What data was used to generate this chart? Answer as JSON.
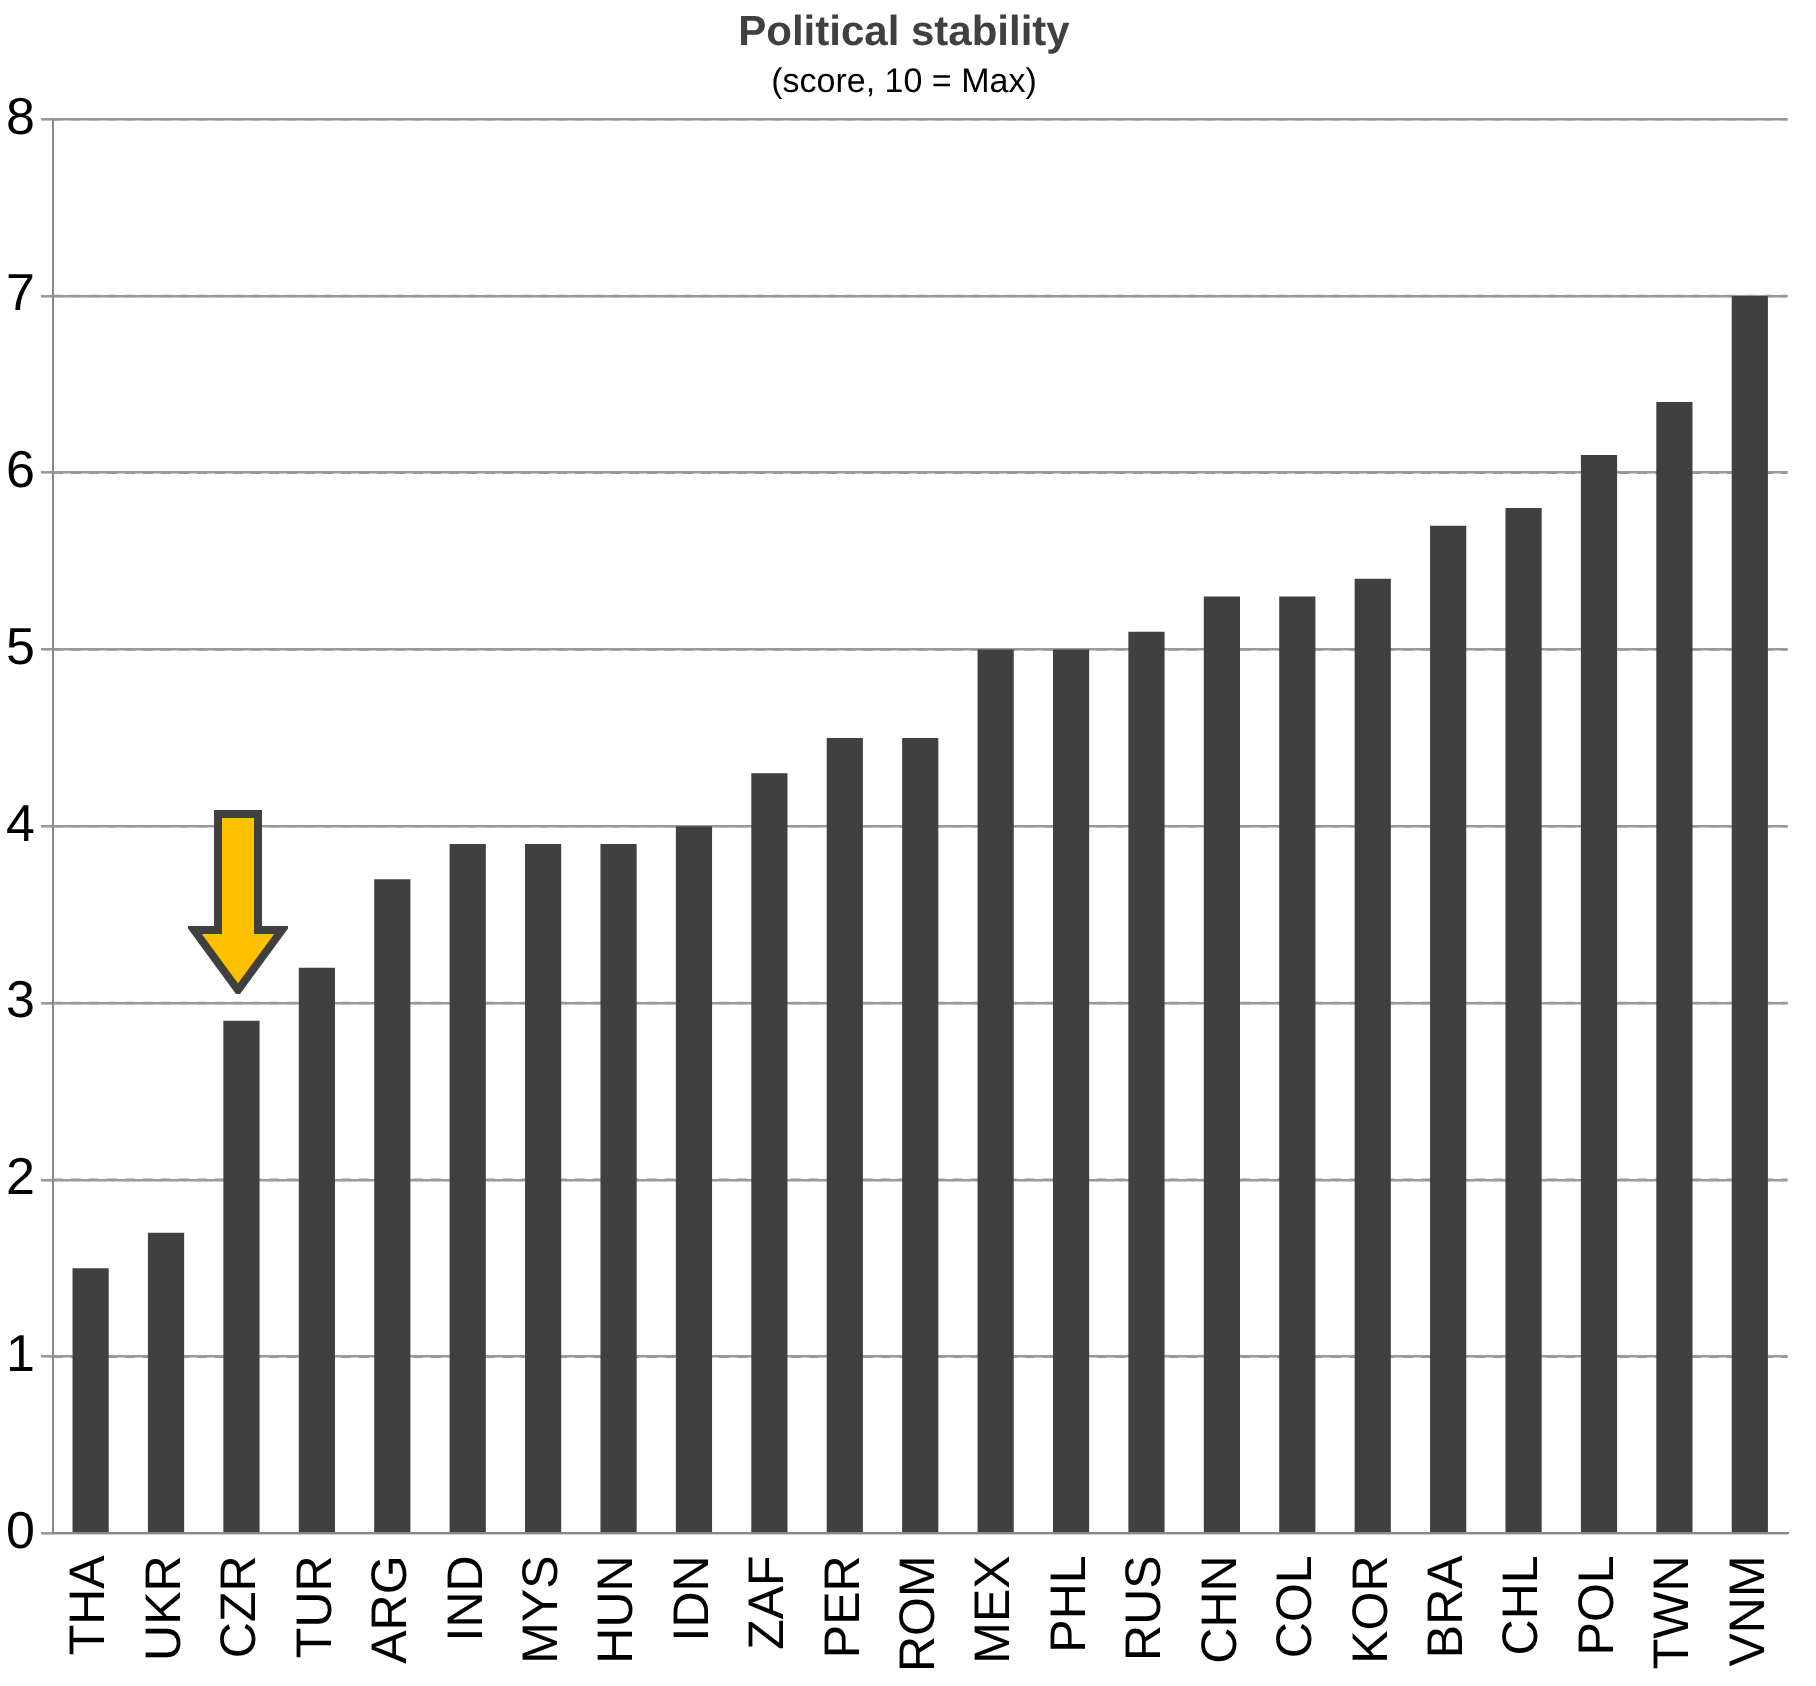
{
  "chart_data": {
    "type": "bar",
    "title": "Political stability",
    "subtitle": "(score, 10 = Max)",
    "categories": [
      "THA",
      "UKR",
      "CZR",
      "TUR",
      "ARG",
      "IND",
      "MYS",
      "HUN",
      "IDN",
      "ZAF",
      "PER",
      "ROM",
      "MEX",
      "PHL",
      "RUS",
      "CHN",
      "COL",
      "KOR",
      "BRA",
      "CHL",
      "POL",
      "TWN",
      "VNM"
    ],
    "values": [
      1.5,
      1.7,
      2.9,
      3.2,
      3.7,
      3.9,
      3.9,
      3.9,
      4.0,
      4.3,
      4.5,
      4.5,
      5.0,
      5.0,
      5.1,
      5.3,
      5.3,
      5.4,
      5.7,
      5.8,
      6.1,
      6.4,
      7.0
    ],
    "color": "#404040",
    "ylim": [
      0,
      8
    ],
    "yticks": [
      0,
      1,
      2,
      3,
      4,
      5,
      6,
      7,
      8
    ],
    "grid": "y",
    "legend": false
  }
}
